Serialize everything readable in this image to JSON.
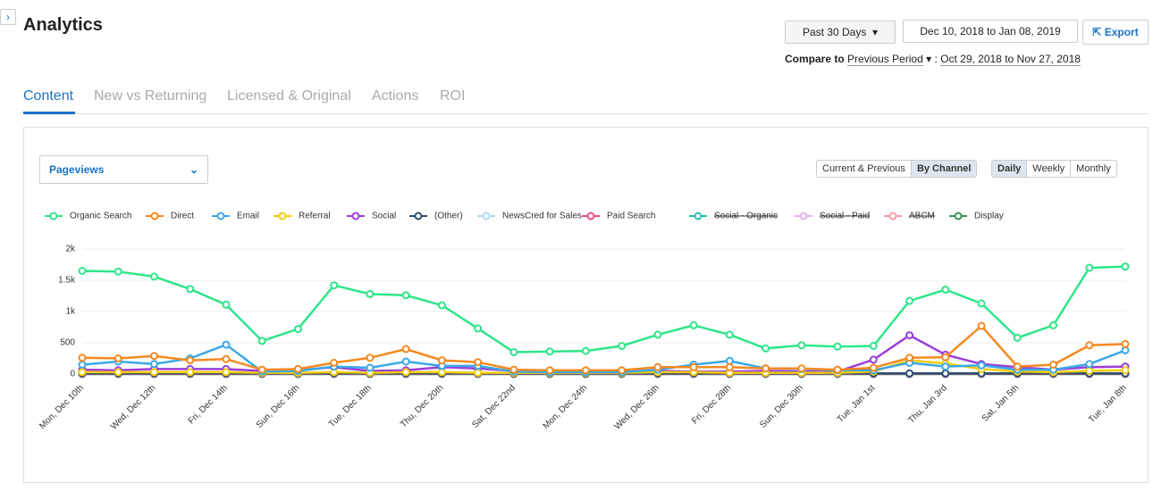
{
  "header": {
    "title": "Analytics",
    "period": "Past 30 Days",
    "range": "Dec 10, 2018 to Jan 08, 2019",
    "export": "Export",
    "compare_label": "Compare to",
    "compare_period": "Previous Period",
    "compare_sep": ":",
    "compare_range": "Oct 29, 2018 to Nov 27, 2018"
  },
  "tabs": [
    "Content",
    "New vs Returning",
    "Licensed & Original",
    "Actions",
    "ROI"
  ],
  "metric": "Pageviews",
  "view_toggle": [
    "Current & Previous",
    "By Channel"
  ],
  "interval_toggle": [
    "Daily",
    "Weekly",
    "Monthly"
  ],
  "chart_data": {
    "type": "line",
    "categories": [
      "Mon, Dec 10th",
      null,
      "Wed, Dec 12th",
      null,
      "Fri, Dec 14th",
      null,
      "Sun, Dec 16th",
      null,
      "Tue, Dec 18th",
      null,
      "Thu, Dec 20th",
      null,
      "Sat, Dec 22nd",
      null,
      "Mon, Dec 24th",
      null,
      "Wed, Dec 26th",
      null,
      "Fri, Dec 28th",
      null,
      "Sun, Dec 30th",
      null,
      "Tue, Jan 1st",
      null,
      "Thu, Jan 3rd",
      null,
      "Sat, Jan 5th",
      null,
      null,
      "Tue, Jan 8th"
    ],
    "ylim": [
      0,
      2000
    ],
    "yticks": [
      0,
      500,
      {
        "value": 1000,
        "label": "1k"
      },
      {
        "value": 1500,
        "label": "1.5k"
      },
      {
        "value": 2000,
        "label": "2k"
      }
    ],
    "grid": true,
    "series": [
      {
        "name": "Organic Search",
        "color": "#2ee58a",
        "values": [
          1650,
          1640,
          1560,
          1360,
          1110,
          530,
          720,
          1420,
          1280,
          1260,
          1100,
          730,
          350,
          360,
          370,
          450,
          630,
          780,
          630,
          410,
          460,
          440,
          450,
          1170,
          1350,
          1130,
          580,
          780,
          1700,
          1720
        ]
      },
      {
        "name": "Direct",
        "color": "#f5891f",
        "values": [
          260,
          250,
          290,
          220,
          240,
          70,
          80,
          180,
          260,
          400,
          220,
          190,
          70,
          60,
          60,
          60,
          110,
          110,
          110,
          90,
          90,
          70,
          100,
          260,
          270,
          770,
          120,
          150,
          460,
          480
        ]
      },
      {
        "name": "Email",
        "color": "#3aa8e8",
        "values": [
          150,
          200,
          160,
          250,
          470,
          40,
          50,
          120,
          100,
          200,
          130,
          130,
          40,
          30,
          30,
          30,
          70,
          150,
          210,
          90,
          80,
          60,
          60,
          180,
          120,
          140,
          70,
          70,
          160,
          380
        ]
      },
      {
        "name": "Referral",
        "color": "#f2cc0c",
        "values": [
          30,
          30,
          30,
          30,
          30,
          20,
          20,
          30,
          20,
          30,
          30,
          20,
          20,
          20,
          20,
          20,
          30,
          30,
          20,
          20,
          20,
          20,
          40,
          220,
          170,
          80,
          40,
          30,
          50,
          60
        ]
      },
      {
        "name": "Social",
        "color": "#9b3ed8",
        "values": [
          70,
          60,
          80,
          80,
          80,
          50,
          60,
          110,
          50,
          60,
          110,
          90,
          50,
          40,
          40,
          40,
          50,
          40,
          40,
          50,
          40,
          40,
          230,
          620,
          310,
          160,
          110,
          70,
          110,
          120
        ]
      },
      {
        "name": "(Other)",
        "color": "#2d4f70",
        "values": [
          10,
          10,
          10,
          10,
          10,
          10,
          10,
          10,
          10,
          10,
          10,
          10,
          10,
          10,
          10,
          10,
          10,
          10,
          10,
          10,
          10,
          10,
          10,
          10,
          10,
          10,
          10,
          10,
          10,
          10
        ]
      },
      {
        "name": "NewsCred for Sales",
        "color": "#a8dcef",
        "values": [
          10,
          10,
          10,
          10,
          10,
          10,
          10,
          10,
          10,
          10,
          10,
          10,
          10,
          10,
          10,
          10,
          10,
          10,
          10,
          10,
          10,
          10,
          10,
          10,
          10,
          10,
          10,
          10,
          10,
          10
        ]
      },
      {
        "name": "Paid Search",
        "color": "#ee4b8a",
        "values": [
          5,
          5,
          5,
          5,
          5,
          5,
          5,
          5,
          5,
          5,
          5,
          5,
          5,
          5,
          5,
          5,
          5,
          5,
          5,
          5,
          5,
          5,
          5,
          5,
          5,
          5,
          5,
          5,
          5,
          5
        ]
      },
      {
        "name": "Social - Organic",
        "color": "#1ec2b4",
        "hidden": true
      },
      {
        "name": "Social - Paid",
        "color": "#e4b3ef",
        "hidden": true
      },
      {
        "name": "ABCM",
        "color": "#f59aa8",
        "hidden": true
      },
      {
        "name": "Display",
        "color": "#3d8f5a",
        "values": [
          0,
          0,
          0,
          0,
          0,
          0,
          0,
          0,
          0,
          0,
          0,
          0,
          0,
          0,
          0,
          0,
          0,
          0,
          0,
          0,
          0,
          0,
          0,
          0,
          0,
          0,
          0,
          0,
          0,
          0
        ]
      }
    ]
  }
}
